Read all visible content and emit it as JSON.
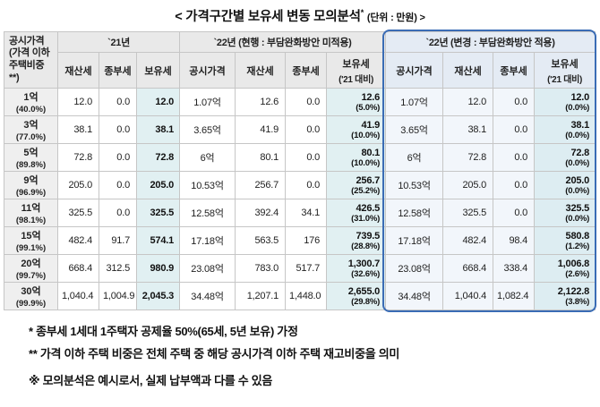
{
  "title": {
    "main": "< 가격구간별 보유세 변동 모의분석",
    "star": "*",
    "unit": "(단위 : 만원) >"
  },
  "table": {
    "corner": [
      "공시가격",
      "(가격 이하",
      "주택비중**)"
    ],
    "groups": [
      {
        "label": "`21년",
        "cols": [
          {
            "t": "재산세"
          },
          {
            "t": "종부세"
          },
          {
            "t": "보유세"
          }
        ]
      },
      {
        "label": "`22년 (현행 : 부담완화방안 미적용)",
        "cols": [
          {
            "t": "공시가격"
          },
          {
            "t": "재산세"
          },
          {
            "t": "종부세"
          },
          {
            "t": "보유세",
            "s": "('21 대비)"
          }
        ]
      },
      {
        "label": "`22년 (변경 : 부담완화방안 적용)",
        "cols": [
          {
            "t": "공시가격"
          },
          {
            "t": "재산세"
          },
          {
            "t": "종부세"
          },
          {
            "t": "보유세",
            "s": "('21 대비)"
          }
        ]
      }
    ],
    "rows": [
      {
        "bracket": "1억",
        "share": "(40.0%)",
        "cells": [
          "12.0",
          "0.0",
          "12.0",
          "1.07억",
          "12.6",
          "0.0",
          "12.6|(5.0%)",
          "1.07억",
          "12.0",
          "0.0",
          "12.0|(0.0%)"
        ]
      },
      {
        "bracket": "3억",
        "share": "(77.0%)",
        "cells": [
          "38.1",
          "0.0",
          "38.1",
          "3.65억",
          "41.9",
          "0.0",
          "41.9|(10.0%)",
          "3.65억",
          "38.1",
          "0.0",
          "38.1|(0.0%)"
        ]
      },
      {
        "bracket": "5억",
        "share": "(89.8%)",
        "cells": [
          "72.8",
          "0.0",
          "72.8",
          "6억",
          "80.1",
          "0.0",
          "80.1|(10.0%)",
          "6억",
          "72.8",
          "0.0",
          "72.8|(0.0%)"
        ]
      },
      {
        "bracket": "9억",
        "share": "(96.9%)",
        "cells": [
          "205.0",
          "0.0",
          "205.0",
          "10.53억",
          "256.7",
          "0.0",
          "256.7|(25.2%)",
          "10.53억",
          "205.0",
          "0.0",
          "205.0|(0.0%)"
        ]
      },
      {
        "bracket": "11억",
        "share": "(98.1%)",
        "cells": [
          "325.5",
          "0.0",
          "325.5",
          "12.58억",
          "392.4",
          "34.1",
          "426.5|(31.0%)",
          "12.58억",
          "325.5",
          "0.0",
          "325.5|(0.0%)"
        ]
      },
      {
        "bracket": "15억",
        "share": "(99.1%)",
        "cells": [
          "482.4",
          "91.7",
          "574.1",
          "17.18억",
          "563.5",
          "176",
          "739.5|(28.8%)",
          "17.18억",
          "482.4",
          "98.4",
          "580.8|(1.2%)"
        ]
      },
      {
        "bracket": "20억",
        "share": "(99.7%)",
        "cells": [
          "668.4",
          "312.5",
          "980.9",
          "23.08억",
          "783.0",
          "517.7",
          "1,300.7|(32.6%)",
          "23.08억",
          "668.4",
          "338.4",
          "1,006.8|(2.6%)"
        ]
      },
      {
        "bracket": "30억",
        "share": "(99.9%)",
        "cells": [
          "1,040.4",
          "1,004.9",
          "2,045.3",
          "34.48억",
          "1,207.1",
          "1,448.0",
          "2,655.0|(29.8%)",
          "34.48억",
          "1,040.4",
          "1,082.4",
          "2,122.8|(3.8%)"
        ]
      }
    ]
  },
  "footnotes": [
    "* 종부세 1세대 1주택자 공제율 50%(65세, 5년 보유) 가정",
    "** 가격 이하 주택 비중은 전체 주택 중 해당 공시가격 이하 주택 재고비중을 의미",
    "※ 모의분석은 예시로서, 실제 납부액과 다를 수 있음"
  ],
  "colors": {
    "accent_border": "#3a6cb5",
    "holding_tax_col_bg": "#e1f0f2",
    "revised_group_bg": "#f2f6fb",
    "header_bg": "#e9e9e9"
  }
}
